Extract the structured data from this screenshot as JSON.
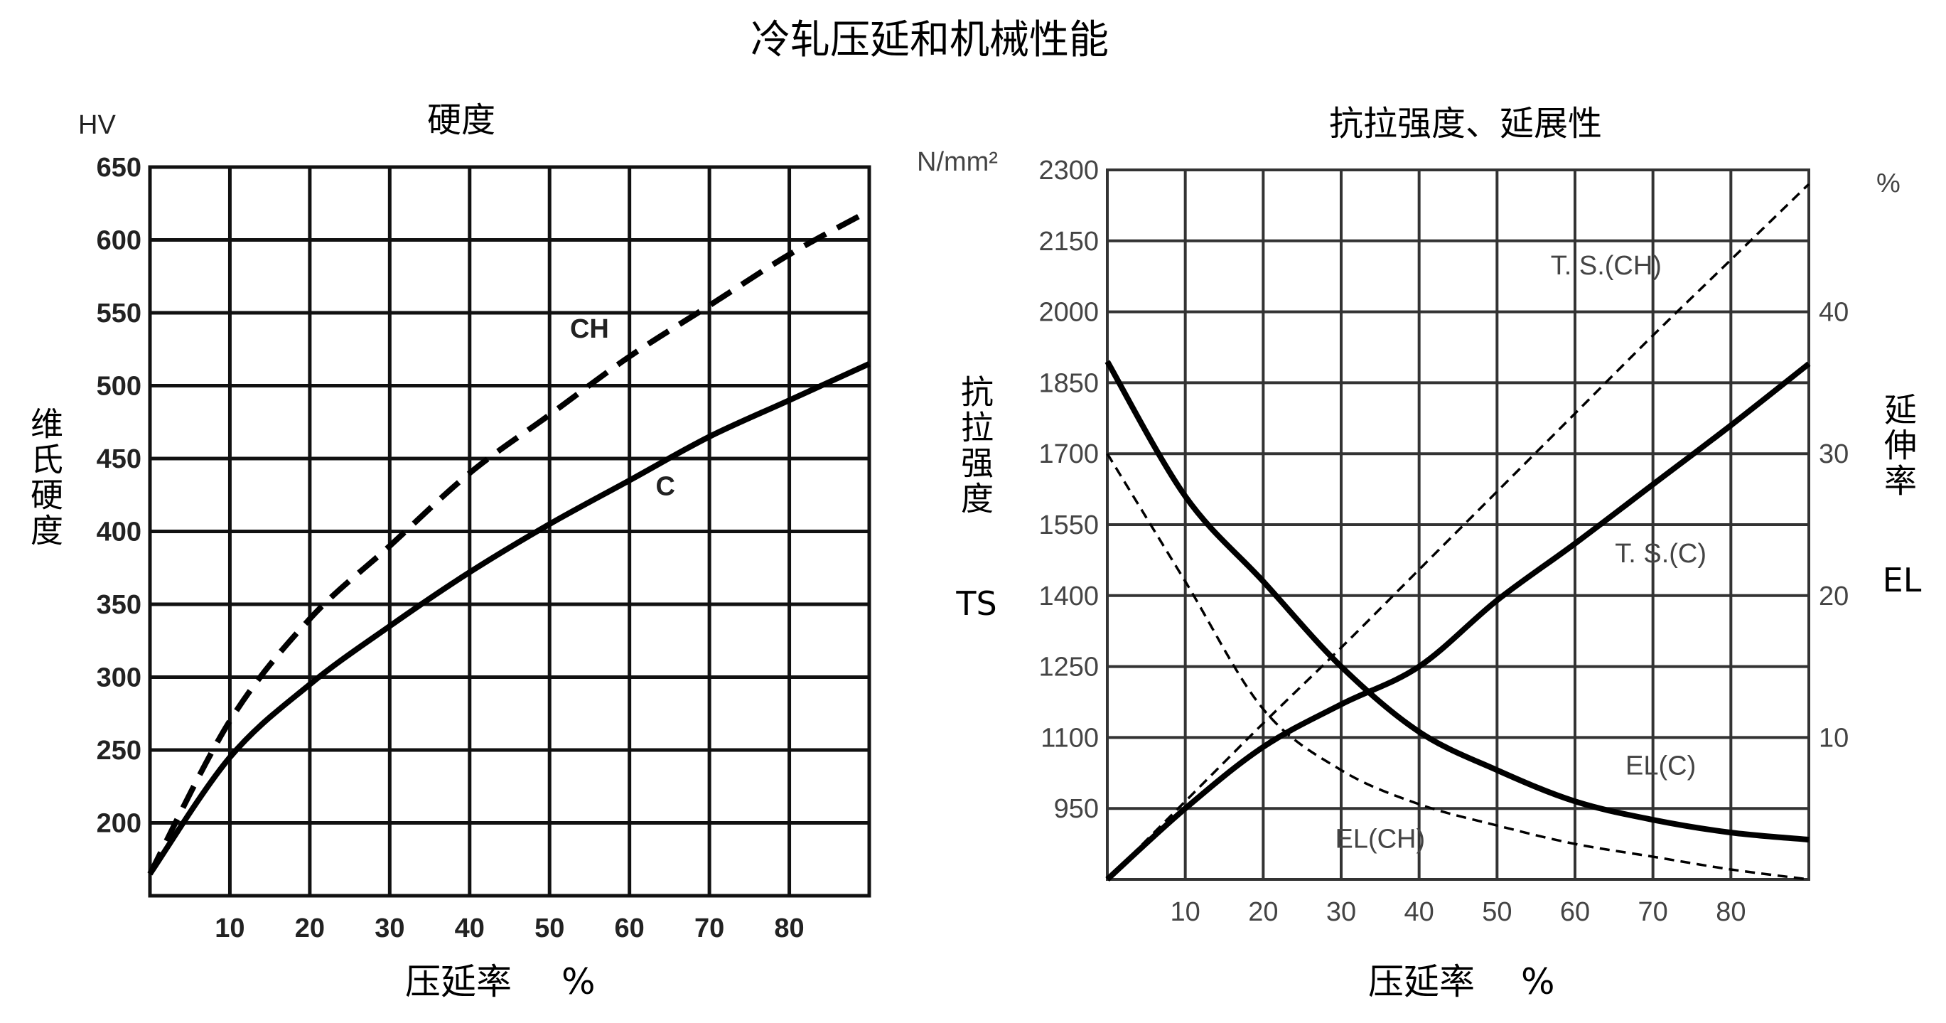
{
  "title": "冷轧压延和机械性能",
  "chart_data": [
    {
      "type": "line",
      "title": "硬度",
      "xlabel": "压延率",
      "xunit": "%",
      "ylabel": "维氏硬度",
      "yunit": "HV",
      "xlim": [
        0,
        90
      ],
      "ylim": [
        150,
        650
      ],
      "xticks": [
        10,
        20,
        30,
        40,
        50,
        60,
        70,
        80
      ],
      "yticks": [
        200,
        250,
        300,
        350,
        400,
        450,
        500,
        550,
        600,
        650
      ],
      "grid": true,
      "x": [
        0,
        10,
        20,
        30,
        40,
        50,
        60,
        70,
        80,
        90
      ],
      "series": [
        {
          "name": "CH",
          "style": "dashed",
          "values": [
            165,
            270,
            340,
            390,
            440,
            480,
            520,
            555,
            590,
            620
          ]
        },
        {
          "name": "C",
          "style": "solid",
          "values": [
            165,
            245,
            295,
            335,
            372,
            405,
            435,
            465,
            490,
            515
          ]
        }
      ],
      "annotations": [
        {
          "text": "CH",
          "x": 55,
          "y": 533
        },
        {
          "text": "C",
          "x": 64.5,
          "y": 425
        }
      ]
    },
    {
      "type": "line",
      "title": "抗拉强度、延展性",
      "xlabel": "压延率",
      "xunit": "%",
      "ylabel": "抗拉强度",
      "ylabel_abbr": "TS",
      "yunit": "N/mm²",
      "y2label": "延伸率",
      "y2label_abbr": "EL",
      "y2unit": "%",
      "xlim": [
        0,
        90
      ],
      "ylim": [
        800,
        2300
      ],
      "y2lim": [
        0,
        50
      ],
      "xticks": [
        10,
        20,
        30,
        40,
        50,
        60,
        70,
        80
      ],
      "yticks": [
        950,
        1100,
        1250,
        1400,
        1550,
        1700,
        1850,
        2000,
        2150,
        2300
      ],
      "y2ticks": [
        10,
        20,
        30,
        40
      ],
      "grid": true,
      "x": [
        0,
        10,
        20,
        30,
        40,
        50,
        60,
        70,
        80,
        90
      ],
      "series": [
        {
          "name": "T.S.(CH)",
          "axis": "left",
          "style": "dashed-thin",
          "values": [
            800,
            965,
            1130,
            1290,
            1455,
            1620,
            1785,
            1950,
            2110,
            2270
          ]
        },
        {
          "name": "T.S.(C)",
          "axis": "left",
          "style": "solid",
          "values": [
            800,
            950,
            1080,
            1170,
            1250,
            1390,
            1510,
            1635,
            1760,
            1890
          ]
        },
        {
          "name": "EL(C)",
          "axis": "right",
          "style": "solid",
          "values": [
            36.5,
            27,
            21,
            15,
            10.4,
            7.7,
            5.5,
            4.2,
            3.3,
            2.8
          ]
        },
        {
          "name": "EL(CH)",
          "axis": "right",
          "style": "dashed-thin",
          "values": [
            30,
            21,
            12,
            7.7,
            5.3,
            3.8,
            2.5,
            1.6,
            0.7,
            0
          ]
        }
      ],
      "annotations": [
        {
          "text": "T. S.(CH)",
          "x": 64,
          "y": 2079
        },
        {
          "text": "T. S.(C)",
          "x": 71,
          "y": 1470
        },
        {
          "text": "EL(C)",
          "x": 71,
          "y": 1022
        },
        {
          "text": "EL(CH)",
          "x": 35,
          "y": 867
        }
      ]
    }
  ]
}
